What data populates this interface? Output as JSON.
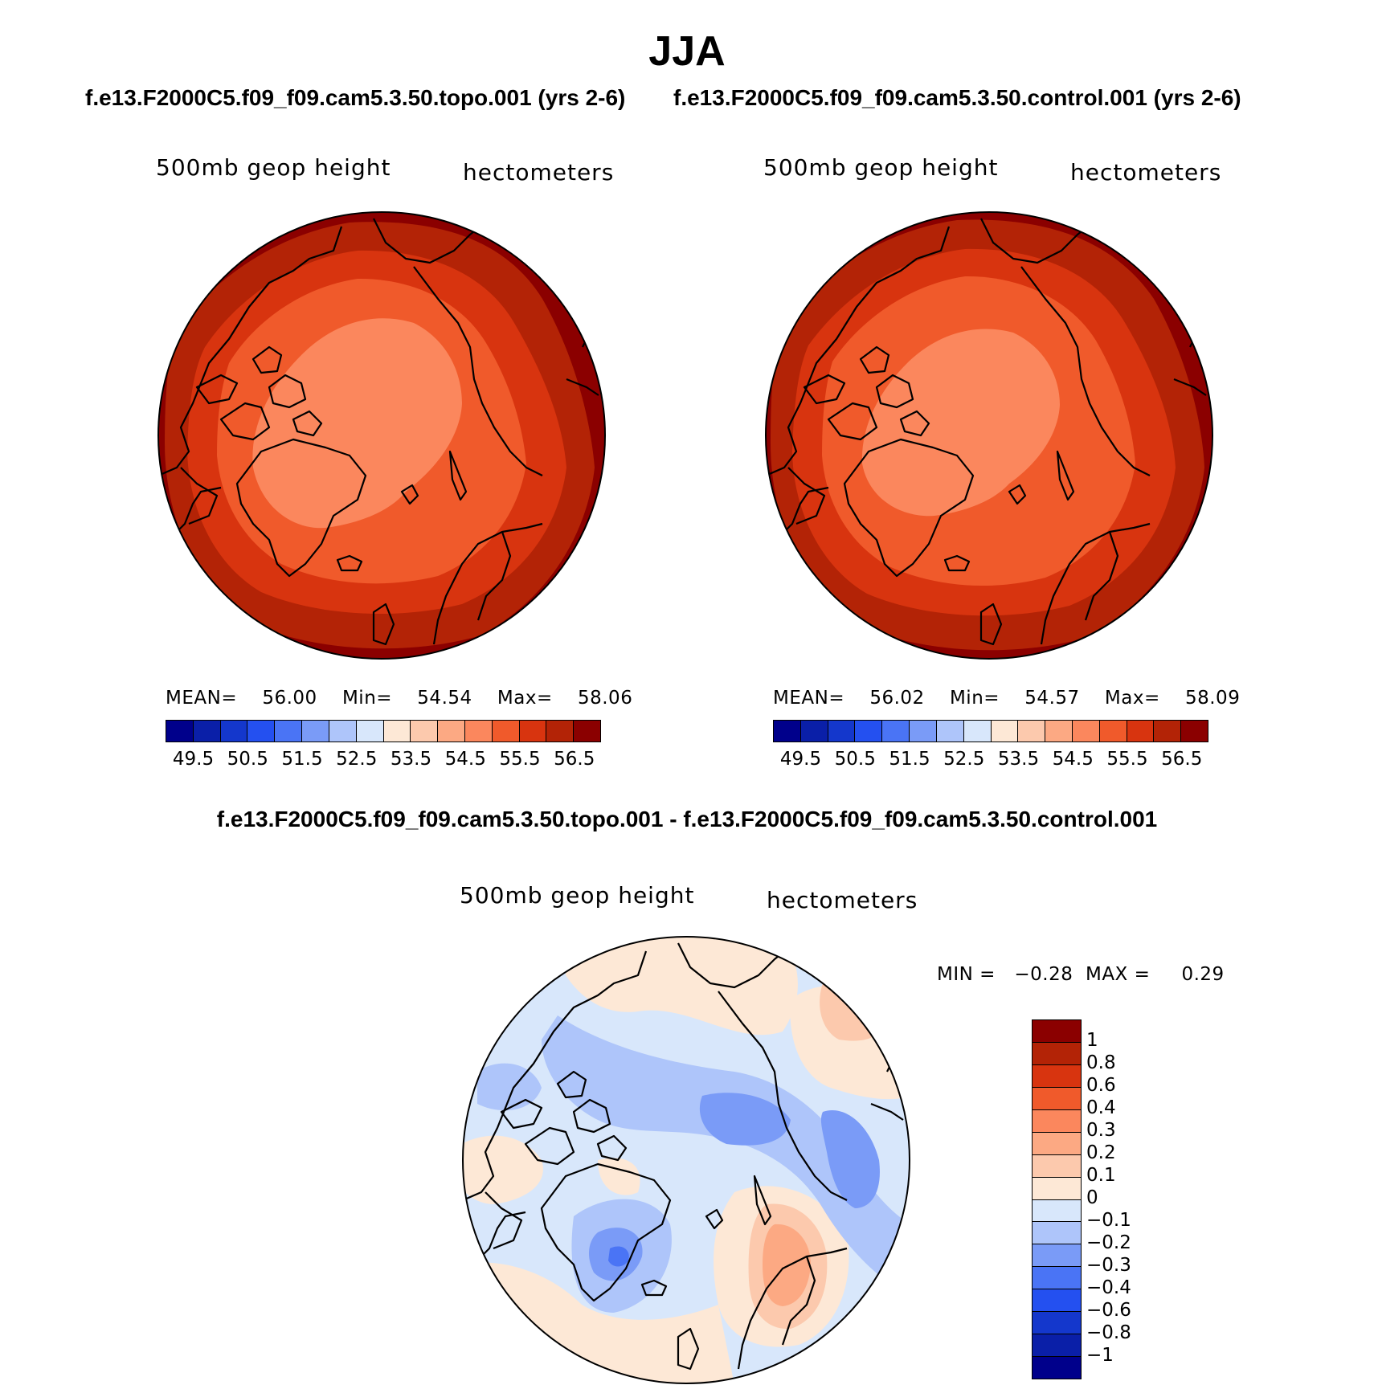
{
  "title": "JJA",
  "panels": [
    {
      "case_title": "f.e13.F2000C5.f09_f09.cam5.3.50.topo.001 (yrs 2-6)",
      "variable": "500mb  geop  height",
      "units": "hectometers",
      "stats": {
        "mean_label": "MEAN=",
        "mean": "56.00",
        "min_label": "Min=",
        "min": "54.54",
        "max_label": "Max=",
        "max": "58.06"
      }
    },
    {
      "case_title": "f.e13.F2000C5.f09_f09.cam5.3.50.control.001 (yrs 2-6)",
      "variable": "500mb  geop  height",
      "units": "hectometers",
      "stats": {
        "mean_label": "MEAN=",
        "mean": "56.02",
        "min_label": "Min=",
        "min": "54.57",
        "max_label": "Max=",
        "max": "58.09"
      }
    }
  ],
  "abs_colorbar": {
    "colors": [
      "#00008b",
      "#0a1fa8",
      "#1437cc",
      "#2450f0",
      "#4a74f5",
      "#7a9bf7",
      "#aec5fa",
      "#d8e7fb",
      "#fde8d6",
      "#fcc9ad",
      "#fca983",
      "#fb875d",
      "#f05a2b",
      "#d8340f",
      "#b32306",
      "#8b0000"
    ],
    "tick_labels": [
      "49.5",
      "50.5",
      "51.5",
      "52.5",
      "53.5",
      "54.5",
      "55.5",
      "56.5"
    ]
  },
  "diff_panel": {
    "title": "f.e13.F2000C5.f09_f09.cam5.3.50.topo.001 - f.e13.F2000C5.f09_f09.cam5.3.50.control.001",
    "variable": "500mb  geop  height",
    "units": "hectometers",
    "min_label": "MIN =",
    "min": "−0.28",
    "max_label": "MAX =",
    "max": "0.29"
  },
  "diff_colorbar": {
    "colors": [
      "#8b0000",
      "#b32306",
      "#d8340f",
      "#f05a2b",
      "#fb875d",
      "#fca983",
      "#fcc9ad",
      "#fde8d6",
      "#d8e7fb",
      "#aec5fa",
      "#7a9bf7",
      "#4a74f5",
      "#2450f0",
      "#1437cc",
      "#0a1fa8",
      "#00008b"
    ],
    "tick_labels": [
      "1",
      "0.8",
      "0.6",
      "0.4",
      "0.3",
      "0.2",
      "0.1",
      "0",
      "−0.1",
      "−0.2",
      "−0.3",
      "−0.4",
      "−0.6",
      "−0.8",
      "−1"
    ]
  }
}
